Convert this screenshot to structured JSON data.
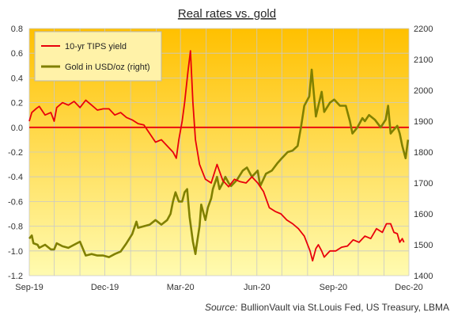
{
  "chart_data": {
    "type": "line",
    "title": "Real rates vs. gold",
    "source_label": "Source:",
    "source_text": "BullionVault via St.Louis Fed, US Treasury, LBMA",
    "x_ticks": [
      "Sep-19",
      "Dec-19",
      "Mar-20",
      "Jun-20",
      "Sep-20",
      "Dec-20"
    ],
    "x_range": [
      "2019-09-01",
      "2020-12-01"
    ],
    "y_left_ticks": [
      "-1.2",
      "-1.0",
      "-0.8",
      "-0.6",
      "-0.4",
      "-0.2",
      "0.0",
      "0.2",
      "0.4",
      "0.6",
      "0.8"
    ],
    "y_left_range": [
      -1.2,
      0.8
    ],
    "y_right_ticks": [
      "1400",
      "1500",
      "1600",
      "1700",
      "1800",
      "1900",
      "2000",
      "2100",
      "2200"
    ],
    "y_right_range": [
      1400,
      2200
    ],
    "grid": true,
    "zero_line": 0.0,
    "legend_position": "top-left",
    "colors": {
      "tips": "#e8000b",
      "gold": "#808000",
      "zero_line": "#e8000b",
      "grid": "#c8c8c8",
      "bg_top": "#ffc000",
      "bg_bottom": "#fffbb0"
    },
    "series": [
      {
        "name": "10-yr TIPS yield",
        "axis": "left",
        "points": [
          [
            "2019-09-01",
            0.05
          ],
          [
            "2019-09-04",
            0.12
          ],
          [
            "2019-09-09",
            0.15
          ],
          [
            "2019-09-13",
            0.17
          ],
          [
            "2019-09-20",
            0.1
          ],
          [
            "2019-09-27",
            0.12
          ],
          [
            "2019-10-01",
            0.05
          ],
          [
            "2019-10-04",
            0.16
          ],
          [
            "2019-10-11",
            0.2
          ],
          [
            "2019-10-18",
            0.18
          ],
          [
            "2019-10-25",
            0.21
          ],
          [
            "2019-11-01",
            0.16
          ],
          [
            "2019-11-08",
            0.22
          ],
          [
            "2019-11-15",
            0.18
          ],
          [
            "2019-11-22",
            0.14
          ],
          [
            "2019-11-29",
            0.15
          ],
          [
            "2019-12-06",
            0.15
          ],
          [
            "2019-12-13",
            0.1
          ],
          [
            "2019-12-20",
            0.12
          ],
          [
            "2019-12-27",
            0.08
          ],
          [
            "2020-01-03",
            0.06
          ],
          [
            "2020-01-10",
            0.03
          ],
          [
            "2020-01-17",
            0.02
          ],
          [
            "2020-01-24",
            -0.05
          ],
          [
            "2020-01-31",
            -0.12
          ],
          [
            "2020-02-07",
            -0.1
          ],
          [
            "2020-02-14",
            -0.15
          ],
          [
            "2020-02-21",
            -0.2
          ],
          [
            "2020-02-25",
            -0.25
          ],
          [
            "2020-02-28",
            -0.1
          ],
          [
            "2020-03-03",
            0.05
          ],
          [
            "2020-03-06",
            0.2
          ],
          [
            "2020-03-10",
            0.45
          ],
          [
            "2020-03-13",
            0.62
          ],
          [
            "2020-03-16",
            0.2
          ],
          [
            "2020-03-19",
            -0.1
          ],
          [
            "2020-03-24",
            -0.3
          ],
          [
            "2020-03-31",
            -0.42
          ],
          [
            "2020-04-07",
            -0.45
          ],
          [
            "2020-04-14",
            -0.3
          ],
          [
            "2020-04-21",
            -0.43
          ],
          [
            "2020-04-28",
            -0.48
          ],
          [
            "2020-05-05",
            -0.42
          ],
          [
            "2020-05-12",
            -0.44
          ],
          [
            "2020-05-19",
            -0.45
          ],
          [
            "2020-05-26",
            -0.4
          ],
          [
            "2020-06-02",
            -0.45
          ],
          [
            "2020-06-09",
            -0.52
          ],
          [
            "2020-06-16",
            -0.65
          ],
          [
            "2020-06-23",
            -0.68
          ],
          [
            "2020-06-30",
            -0.7
          ],
          [
            "2020-07-07",
            -0.75
          ],
          [
            "2020-07-14",
            -0.78
          ],
          [
            "2020-07-21",
            -0.82
          ],
          [
            "2020-07-28",
            -0.88
          ],
          [
            "2020-08-04",
            -1.0
          ],
          [
            "2020-08-07",
            -1.08
          ],
          [
            "2020-08-11",
            -0.98
          ],
          [
            "2020-08-14",
            -0.95
          ],
          [
            "2020-08-18",
            -1.0
          ],
          [
            "2020-08-21",
            -1.05
          ],
          [
            "2020-08-28",
            -1.0
          ],
          [
            "2020-09-04",
            -1.0
          ],
          [
            "2020-09-11",
            -0.97
          ],
          [
            "2020-09-18",
            -0.96
          ],
          [
            "2020-09-25",
            -0.91
          ],
          [
            "2020-10-02",
            -0.93
          ],
          [
            "2020-10-09",
            -0.88
          ],
          [
            "2020-10-16",
            -0.9
          ],
          [
            "2020-10-23",
            -0.82
          ],
          [
            "2020-10-30",
            -0.85
          ],
          [
            "2020-11-04",
            -0.78
          ],
          [
            "2020-11-09",
            -0.78
          ],
          [
            "2020-11-13",
            -0.85
          ],
          [
            "2020-11-17",
            -0.86
          ],
          [
            "2020-11-20",
            -0.93
          ],
          [
            "2020-11-23",
            -0.9
          ],
          [
            "2020-11-25",
            -0.93
          ]
        ]
      },
      {
        "name": "Gold in USD/oz (right)",
        "axis": "right",
        "points": [
          [
            "2019-09-01",
            1520
          ],
          [
            "2019-09-04",
            1530
          ],
          [
            "2019-09-06",
            1505
          ],
          [
            "2019-09-11",
            1500
          ],
          [
            "2019-09-13",
            1490
          ],
          [
            "2019-09-20",
            1500
          ],
          [
            "2019-09-27",
            1485
          ],
          [
            "2019-10-01",
            1485
          ],
          [
            "2019-10-04",
            1505
          ],
          [
            "2019-10-11",
            1495
          ],
          [
            "2019-10-18",
            1490
          ],
          [
            "2019-10-25",
            1500
          ],
          [
            "2019-11-01",
            1510
          ],
          [
            "2019-11-08",
            1465
          ],
          [
            "2019-11-15",
            1470
          ],
          [
            "2019-11-22",
            1465
          ],
          [
            "2019-11-29",
            1465
          ],
          [
            "2019-12-06",
            1460
          ],
          [
            "2019-12-13",
            1470
          ],
          [
            "2019-12-20",
            1478
          ],
          [
            "2019-12-27",
            1505
          ],
          [
            "2020-01-03",
            1535
          ],
          [
            "2020-01-08",
            1575
          ],
          [
            "2020-01-10",
            1555
          ],
          [
            "2020-01-17",
            1560
          ],
          [
            "2020-01-24",
            1565
          ],
          [
            "2020-01-31",
            1580
          ],
          [
            "2020-02-07",
            1565
          ],
          [
            "2020-02-14",
            1580
          ],
          [
            "2020-02-18",
            1600
          ],
          [
            "2020-02-21",
            1640
          ],
          [
            "2020-02-24",
            1670
          ],
          [
            "2020-02-28",
            1640
          ],
          [
            "2020-03-03",
            1640
          ],
          [
            "2020-03-06",
            1670
          ],
          [
            "2020-03-09",
            1680
          ],
          [
            "2020-03-12",
            1590
          ],
          [
            "2020-03-16",
            1510
          ],
          [
            "2020-03-19",
            1470
          ],
          [
            "2020-03-20",
            1490
          ],
          [
            "2020-03-24",
            1560
          ],
          [
            "2020-03-26",
            1630
          ],
          [
            "2020-03-31",
            1580
          ],
          [
            "2020-04-03",
            1620
          ],
          [
            "2020-04-07",
            1650
          ],
          [
            "2020-04-09",
            1680
          ],
          [
            "2020-04-14",
            1720
          ],
          [
            "2020-04-17",
            1680
          ],
          [
            "2020-04-21",
            1700
          ],
          [
            "2020-04-24",
            1720
          ],
          [
            "2020-04-28",
            1700
          ],
          [
            "2020-05-01",
            1690
          ],
          [
            "2020-05-08",
            1710
          ],
          [
            "2020-05-15",
            1740
          ],
          [
            "2020-05-20",
            1750
          ],
          [
            "2020-05-26",
            1720
          ],
          [
            "2020-06-02",
            1740
          ],
          [
            "2020-06-05",
            1690
          ],
          [
            "2020-06-12",
            1730
          ],
          [
            "2020-06-19",
            1740
          ],
          [
            "2020-06-26",
            1765
          ],
          [
            "2020-07-01",
            1780
          ],
          [
            "2020-07-08",
            1800
          ],
          [
            "2020-07-14",
            1805
          ],
          [
            "2020-07-20",
            1820
          ],
          [
            "2020-07-24",
            1880
          ],
          [
            "2020-07-28",
            1950
          ],
          [
            "2020-08-03",
            1980
          ],
          [
            "2020-08-06",
            2067
          ],
          [
            "2020-08-11",
            1915
          ],
          [
            "2020-08-14",
            1950
          ],
          [
            "2020-08-18",
            1995
          ],
          [
            "2020-08-21",
            1930
          ],
          [
            "2020-08-28",
            1960
          ],
          [
            "2020-09-02",
            1970
          ],
          [
            "2020-09-09",
            1950
          ],
          [
            "2020-09-16",
            1950
          ],
          [
            "2020-09-21",
            1900
          ],
          [
            "2020-09-24",
            1860
          ],
          [
            "2020-09-30",
            1880
          ],
          [
            "2020-10-06",
            1910
          ],
          [
            "2020-10-09",
            1900
          ],
          [
            "2020-10-14",
            1920
          ],
          [
            "2020-10-21",
            1905
          ],
          [
            "2020-10-28",
            1880
          ],
          [
            "2020-11-03",
            1905
          ],
          [
            "2020-11-06",
            1950
          ],
          [
            "2020-11-09",
            1860
          ],
          [
            "2020-11-12",
            1870
          ],
          [
            "2020-11-17",
            1885
          ],
          [
            "2020-11-20",
            1860
          ],
          [
            "2020-11-23",
            1820
          ],
          [
            "2020-11-27",
            1780
          ],
          [
            "2020-11-30",
            1840
          ]
        ]
      }
    ]
  }
}
